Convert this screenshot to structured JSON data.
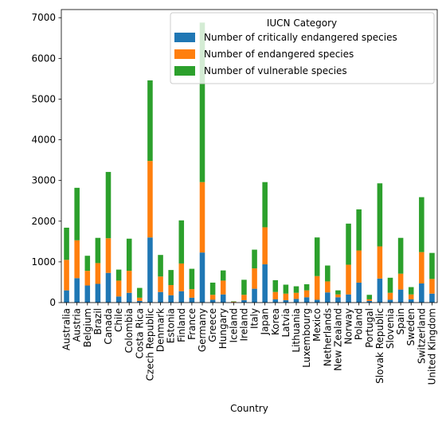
{
  "chart_data": {
    "type": "bar",
    "stacked": true,
    "xlabel": "Country",
    "ylabel": "",
    "ylim": [
      0,
      7200
    ],
    "yticks": [
      0,
      1000,
      2000,
      3000,
      4000,
      5000,
      6000,
      7000
    ],
    "grid": false,
    "legend_position": "top-right",
    "legend_title": "IUCN Category",
    "categories": [
      "Australia",
      "Austria",
      "Belgium",
      "Brazil",
      "Canada",
      "Chile",
      "Colombia",
      "Costa Rica",
      "Czech Republic",
      "Denmark",
      "Estonia",
      "Finland",
      "France",
      "Germany",
      "Greece",
      "Hungary",
      "Iceland",
      "Ireland",
      "Italy",
      "Japan",
      "Korea",
      "Latvia",
      "Lithuania",
      "Luxembourg",
      "Mexico",
      "Netherlands",
      "New Zealand",
      "Norway",
      "Poland",
      "Portugal",
      "Slovak Republic",
      "Slovenia",
      "Spain",
      "Sweden",
      "Switzerland",
      "United Kingdom"
    ],
    "series": [
      {
        "name": "Number of critically endangered species",
        "color": "#1f77b4",
        "values": [
          300,
          600,
          420,
          460,
          730,
          150,
          240,
          40,
          1600,
          260,
          180,
          280,
          120,
          1230,
          70,
          200,
          10,
          60,
          340,
          940,
          80,
          60,
          90,
          130,
          70,
          250,
          130,
          200,
          490,
          40,
          590,
          70,
          320,
          80,
          470,
          220
        ]
      },
      {
        "name": "Number of endangered species",
        "color": "#ff7f0e",
        "values": [
          750,
          930,
          360,
          510,
          850,
          390,
          540,
          80,
          1880,
          380,
          250,
          680,
          210,
          1730,
          120,
          340,
          10,
          130,
          500,
          910,
          180,
          160,
          150,
          170,
          580,
          270,
          70,
          730,
          790,
          40,
          790,
          170,
          390,
          120,
          770,
          360
        ]
      },
      {
        "name": "Number of vulnerable species",
        "color": "#2ca02c",
        "values": [
          790,
          1290,
          370,
          620,
          1630,
          270,
          790,
          240,
          1980,
          530,
          370,
          1060,
          500,
          3920,
          300,
          250,
          10,
          370,
          460,
          1110,
          290,
          220,
          160,
          150,
          950,
          390,
          100,
          1010,
          1010,
          110,
          1550,
          370,
          880,
          180,
          1350,
          640
        ]
      }
    ]
  }
}
